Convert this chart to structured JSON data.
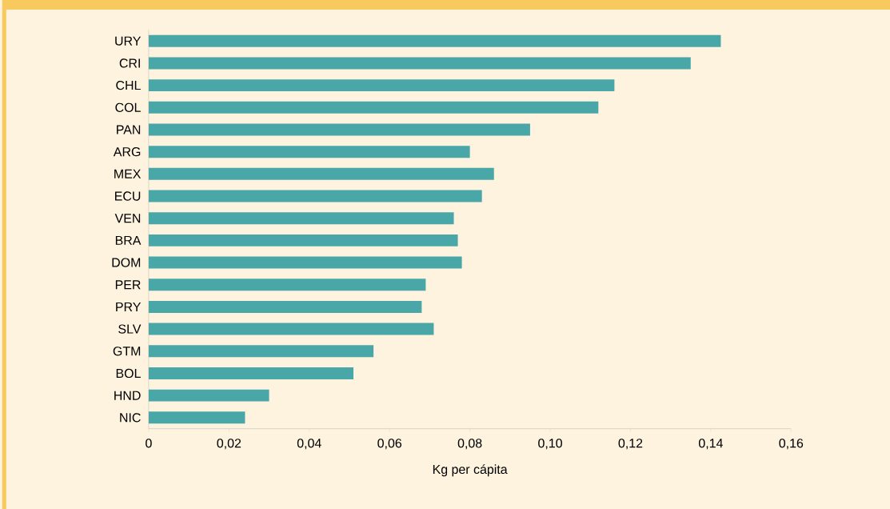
{
  "chart_data": {
    "type": "bar",
    "orientation": "horizontal",
    "xlabel": "Kg per cápita",
    "categories": [
      "URY",
      "CRI",
      "CHL",
      "COL",
      "PAN",
      "ARG",
      "MEX",
      "ECU",
      "VEN",
      "BRA",
      "DOM",
      "PER",
      "PRY",
      "SLV",
      "GTM",
      "BOL",
      "HND",
      "NIC"
    ],
    "values": [
      0.1425,
      0.135,
      0.116,
      0.112,
      0.095,
      0.08,
      0.086,
      0.083,
      0.076,
      0.077,
      0.078,
      0.069,
      0.068,
      0.071,
      0.056,
      0.051,
      0.03,
      0.024
    ],
    "color": "#4aa7a8",
    "xlim": [
      0,
      0.16
    ],
    "xticks": [
      0,
      {
        "value": 0.02,
        "label": "0,02"
      },
      {
        "value": 0.04,
        "label": "0,04"
      },
      {
        "value": 0.06,
        "label": "0,06"
      },
      {
        "value": 0.08,
        "label": "0,08"
      },
      {
        "value": 0.1,
        "label": "0,10"
      },
      {
        "value": 0.12,
        "label": "0,12"
      },
      {
        "value": 0.14,
        "label": "0,14"
      },
      {
        "value": 0.16,
        "label": "0,16"
      }
    ],
    "grid": false
  }
}
